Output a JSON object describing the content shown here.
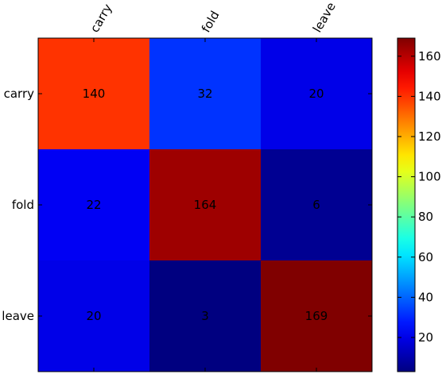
{
  "chart_data": {
    "type": "heatmap",
    "title": "",
    "xlabel": "",
    "ylabel": "",
    "x_categories": [
      "carry",
      "fold",
      "leave"
    ],
    "y_categories": [
      "carry",
      "fold",
      "leave"
    ],
    "values": [
      [
        140,
        32,
        20
      ],
      [
        22,
        164,
        6
      ],
      [
        20,
        3,
        169
      ]
    ],
    "colormap": "jet",
    "color_range": [
      3,
      169
    ],
    "colorbar_ticks": [
      20,
      40,
      60,
      80,
      100,
      120,
      140,
      160
    ],
    "x_tick_rotation_deg": 60,
    "x_ticks_position": "top",
    "colorbar_position": "right",
    "grid": false
  }
}
